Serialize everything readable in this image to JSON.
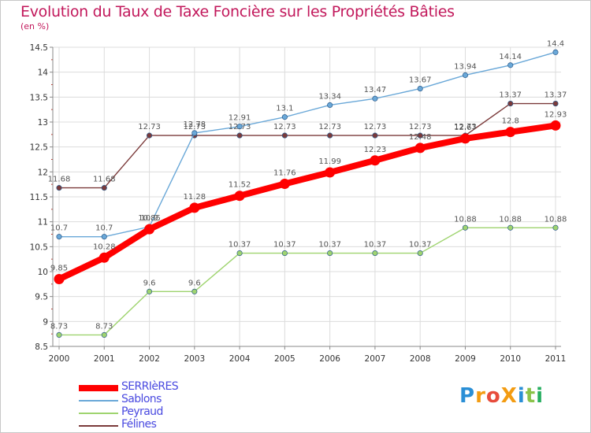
{
  "title": "Evolution du Taux de Taxe Foncière sur les Propriétés Bâties",
  "unit_label": "(en %)",
  "logo": {
    "text": "ProXiti",
    "colors": [
      "#2a8fd6",
      "#f39c12",
      "#e74c3c",
      "#f39c12",
      "#2a8fd6",
      "#8bc34a",
      "#27ae60"
    ]
  },
  "chart_data": {
    "type": "line",
    "title": "Evolution du Taux de Taxe Foncière sur les Propriétés Bâties",
    "xlabel": "",
    "ylabel": "(en %)",
    "ylim": [
      8.5,
      14.5
    ],
    "yticks": [
      "8.5",
      "9",
      "9.5",
      "10",
      "10.5",
      "11",
      "11.5",
      "12",
      "12.5",
      "13",
      "13.5",
      "14",
      "14.5"
    ],
    "categories": [
      "2000",
      "2001",
      "2002",
      "2003",
      "2004",
      "2005",
      "2006",
      "2007",
      "2008",
      "2009",
      "2010",
      "2011"
    ],
    "series": [
      {
        "name": "SERRIèRES",
        "color": "#ff0000",
        "values": [
          9.85,
          10.28,
          10.85,
          11.28,
          11.52,
          11.76,
          11.99,
          12.23,
          12.48,
          12.67,
          12.8,
          12.93
        ],
        "labels": [
          "9.85",
          "10.28",
          "10.85",
          "11.28",
          "11.52",
          "11.76",
          "11.99",
          "12.23",
          "12.48",
          "12.67",
          "12.8",
          "12.93"
        ]
      },
      {
        "name": "Sablons",
        "color": "#6aa8d8",
        "values": [
          10.7,
          10.7,
          10.9,
          12.78,
          12.91,
          13.1,
          13.34,
          13.47,
          13.67,
          13.94,
          14.14,
          14.4
        ],
        "labels": [
          "10.7",
          "10.7",
          "10.9",
          "12.78",
          "12.91",
          "13.1",
          "13.34",
          "13.47",
          "13.67",
          "13.94",
          "14.14",
          "14.4"
        ]
      },
      {
        "name": "Peyraud",
        "color": "#9fd46f",
        "values": [
          8.73,
          8.73,
          9.6,
          9.6,
          10.37,
          10.37,
          10.37,
          10.37,
          10.37,
          10.88,
          10.88,
          10.88
        ],
        "labels": [
          "8.73",
          "8.73",
          "9.6",
          "9.6",
          "10.37",
          "10.37",
          "10.37",
          "10.37",
          "10.37",
          "10.88",
          "10.88",
          "10.88"
        ]
      },
      {
        "name": "Félines",
        "color": "#7b3a3a",
        "values": [
          11.68,
          11.68,
          12.73,
          12.73,
          12.73,
          12.73,
          12.73,
          12.73,
          12.73,
          12.73,
          13.37,
          13.37
        ],
        "labels": [
          "11.68",
          "11.68",
          "12.73",
          "12.73",
          "12.73",
          "12.73",
          "12.73",
          "12.73",
          "12.73",
          "12.73",
          "13.37",
          "13.37"
        ]
      }
    ],
    "grid": true,
    "legend_position": "bottom-left"
  }
}
